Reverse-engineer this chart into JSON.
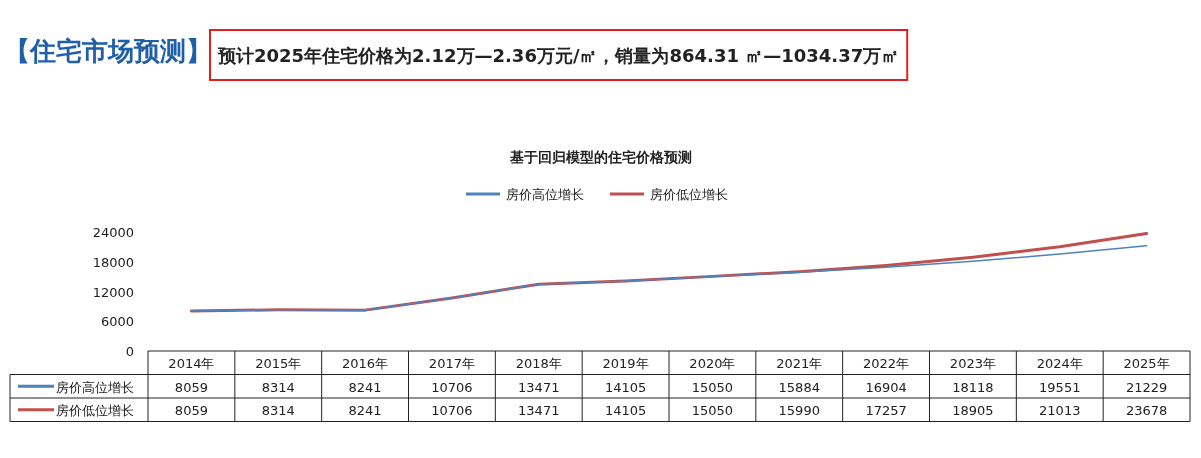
{
  "chart_data": {
    "type": "line",
    "title": "【住宅市场预测】",
    "subtitle": "预计2025年住宅价格为2.12万—2.36万元/㎡，销量为864.31 ㎡—1034.37万㎡",
    "annotations": [
      "基于回归模型的住宅价格预测"
    ],
    "categories": [
      "2014年",
      "2015年",
      "2016年",
      "2017年",
      "2018年",
      "2019年",
      "2020年",
      "2021年",
      "2022年",
      "2023年",
      "2024年",
      "2025年"
    ],
    "series": [
      {
        "name": "房价高位增长",
        "color": "#4f81bd",
        "values": [
          8059,
          8314,
          8241,
          10706,
          13471,
          14105,
          15050,
          15884,
          16904,
          18118,
          19551,
          21229
        ]
      },
      {
        "name": "房价低位增长",
        "color": "#c0504d",
        "values": [
          8059,
          8314,
          8241,
          10706,
          13471,
          14105,
          15050,
          15990,
          17257,
          18905,
          21013,
          23678
        ]
      }
    ],
    "ylim": [
      0,
      24000
    ],
    "yticks": [
      0,
      6000,
      12000,
      18000,
      24000
    ],
    "grid": false,
    "legend": "top",
    "data_labels": true,
    "marker": "none",
    "line_style": "solid"
  }
}
